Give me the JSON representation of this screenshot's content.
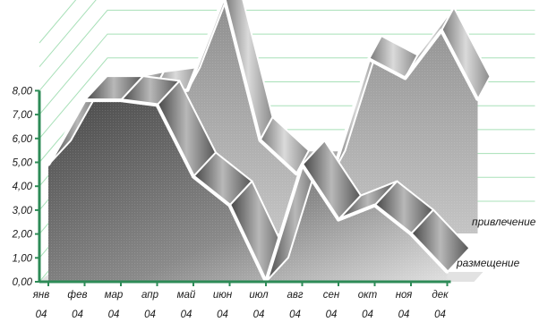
{
  "chart_data": {
    "type": "area",
    "three_d": true,
    "categories": [
      "янв 04",
      "фев 04",
      "мар 04",
      "апр 04",
      "май 04",
      "июн 04",
      "июл 04",
      "авг 04",
      "сен 04",
      "окт 04",
      "ноя 04",
      "дек 04"
    ],
    "series": [
      {
        "name": "размещение",
        "values": [
          4.9,
          7.6,
          7.6,
          7.4,
          4.4,
          3.2,
          0.0,
          4.9,
          2.6,
          3.2,
          2.0,
          0.4
        ]
      },
      {
        "name": "привлечение",
        "values": [
          0.0,
          5.5,
          5.8,
          6.0,
          9.9,
          3.9,
          2.5,
          2.5,
          7.3,
          6.5,
          8.5,
          5.6
        ]
      }
    ],
    "y_ticks": [
      "0,00",
      "1,00",
      "2,00",
      "3,00",
      "4,00",
      "5,00",
      "6,00",
      "7,00",
      "8,00"
    ],
    "ylim": [
      0,
      8
    ],
    "grid": true,
    "legend": "right, next to each series",
    "colors": {
      "axis": "#2e8b57",
      "grid": "#a8e0b8",
      "outline": "#ffffff"
    }
  }
}
